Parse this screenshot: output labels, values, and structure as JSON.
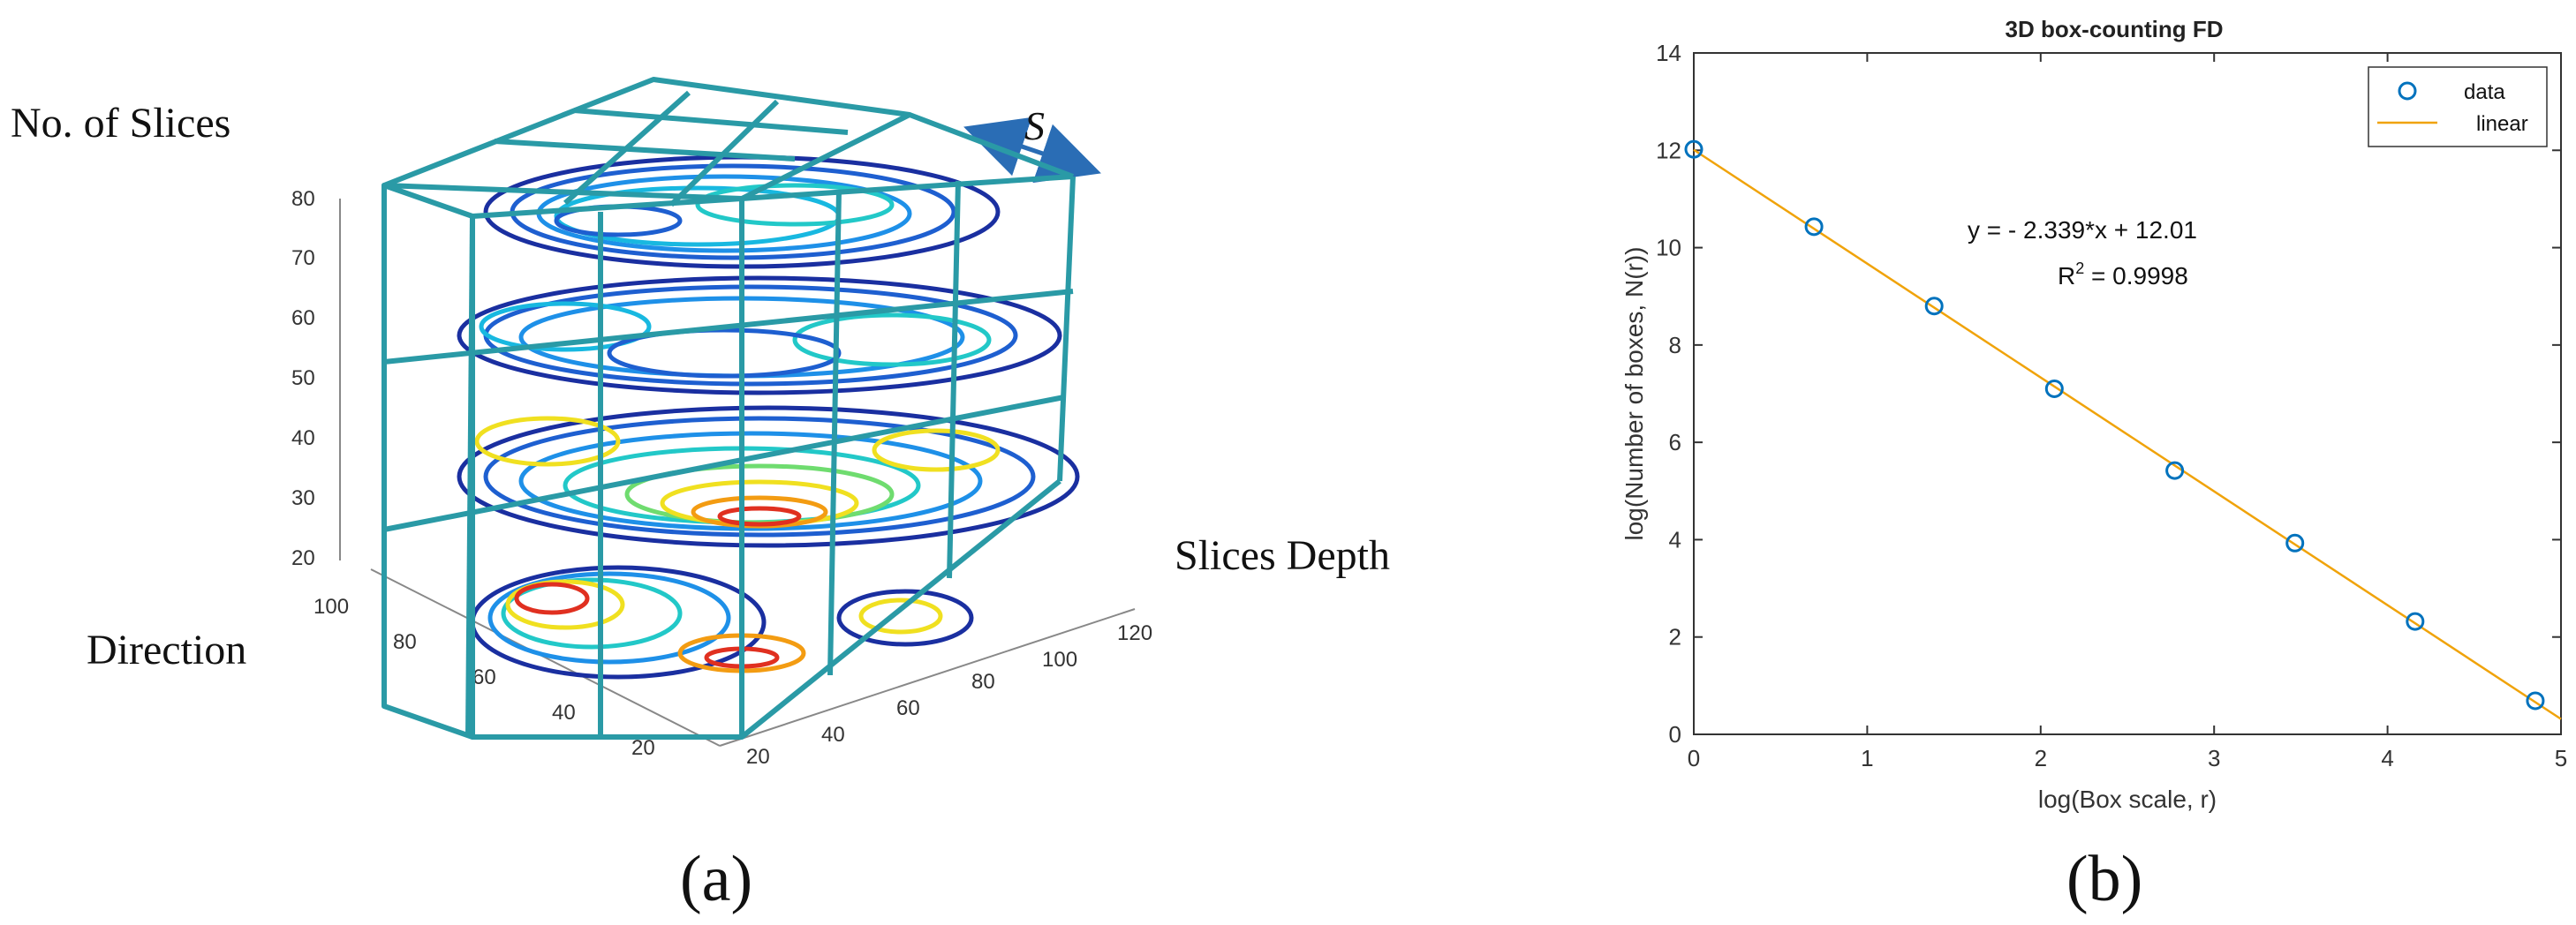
{
  "panel_a": {
    "label": "(a)",
    "zlabel": "No. of Slices",
    "xlabel": "Direction",
    "ylabel": "Slices Depth",
    "scale_symbol": "S",
    "z_ticks": [
      "80",
      "70",
      "60",
      "50",
      "40",
      "30",
      "20"
    ],
    "x_ticks": [
      "100",
      "80",
      "60",
      "40",
      "20"
    ],
    "y_ticks": [
      "20",
      "40",
      "60",
      "80",
      "100",
      "120"
    ],
    "colors": {
      "cube": "#2a9aa6",
      "arrow": "#2a6db5"
    }
  },
  "panel_b": {
    "label": "(b)",
    "chart_data": {
      "type": "scatter",
      "title": "3D box-counting FD",
      "xlabel": "log(Box scale, r)",
      "ylabel": "log(Number of boxes, N(r))",
      "xlim": [
        0,
        5
      ],
      "ylim": [
        0,
        14
      ],
      "x_ticks": [
        "0",
        "1",
        "2",
        "3",
        "4",
        "5"
      ],
      "y_ticks": [
        "0",
        "2",
        "4",
        "6",
        "8",
        "10",
        "12",
        "14"
      ],
      "series": [
        {
          "name": "data",
          "marker": "circle",
          "color": "#0072bd",
          "x": [
            0,
            0.693,
            1.386,
            2.079,
            2.773,
            3.466,
            4.159,
            4.852
          ],
          "y": [
            12.02,
            10.43,
            8.8,
            7.1,
            5.42,
            3.93,
            2.32,
            0.69
          ]
        },
        {
          "name": "linear",
          "type": "line",
          "color": "#f0a30a",
          "slope": -2.339,
          "intercept": 12.01
        }
      ],
      "legend": "top-right",
      "annotation": {
        "equation": "y = - 2.339*x + 12.01",
        "r2_prefix": "R",
        "r2_exp": "2",
        "r2_value": " = 0.9998"
      }
    }
  }
}
